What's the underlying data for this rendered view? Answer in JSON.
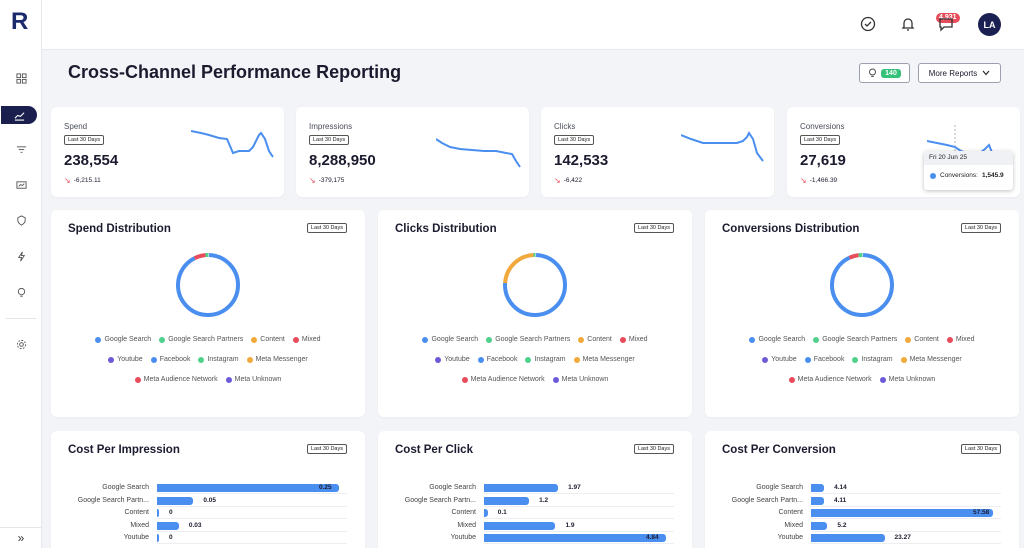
{
  "app": {
    "logo": "R"
  },
  "topbar": {
    "notification_count": "4,931",
    "avatar_initials": "LA"
  },
  "page": {
    "title": "Cross-Channel Performance Reporting",
    "insights_count": "140",
    "more_reports_label": "More Reports"
  },
  "kpis": [
    {
      "label": "Spend",
      "period": "Last 30 Days",
      "value": "238,554",
      "delta": "-6,215.11"
    },
    {
      "label": "Impressions",
      "period": "Last 30 Days",
      "value": "8,288,950",
      "delta": "-379,175"
    },
    {
      "label": "Clicks",
      "period": "Last 30 Days",
      "value": "142,533",
      "delta": "-6,422"
    },
    {
      "label": "Conversions",
      "period": "Last 30 Days",
      "value": "27,619",
      "delta": "-1,466.39"
    }
  ],
  "tooltip": {
    "date": "Fri 20 Jun 25",
    "series": "Conversions:",
    "value": "1,545.9"
  },
  "legend_items": [
    {
      "name": "Google Search",
      "color": "#4a8ff0"
    },
    {
      "name": "Google Search Partners",
      "color": "#4fd08b"
    },
    {
      "name": "Content",
      "color": "#f2a93b"
    },
    {
      "name": "Mixed",
      "color": "#e84b5a"
    },
    {
      "name": "Youtube",
      "color": "#6b5bd6"
    },
    {
      "name": "Facebook",
      "color": "#4a8ff0"
    },
    {
      "name": "Instagram",
      "color": "#4fd08b"
    },
    {
      "name": "Meta Messenger",
      "color": "#f2a93b"
    },
    {
      "name": "Meta Audience Network",
      "color": "#e84b5a"
    },
    {
      "name": "Meta Unknown",
      "color": "#6b5bd6"
    }
  ],
  "distribution_panels": [
    {
      "title": "Spend Distribution",
      "period": "Last 30 Days"
    },
    {
      "title": "Clicks Distribution",
      "period": "Last 30 Days"
    },
    {
      "title": "Conversions Distribution",
      "period": "Last 30 Days"
    }
  ],
  "chart_data": [
    {
      "type": "pie",
      "title": "Spend Distribution",
      "categories": [
        "Google Search",
        "Mixed",
        "Google Search Partners"
      ],
      "values": [
        91,
        6,
        1.5
      ]
    },
    {
      "type": "pie",
      "title": "Clicks Distribution",
      "categories": [
        "Google Search",
        "Content",
        "Google Search Partners"
      ],
      "values": [
        75,
        23,
        1
      ]
    },
    {
      "type": "pie",
      "title": "Conversions Distribution",
      "categories": [
        "Google Search",
        "Mixed",
        "Google Search Partners"
      ],
      "values": [
        92,
        5,
        2
      ]
    },
    {
      "type": "bar",
      "title": "Cost Per Impression",
      "period": "Last 30 Days",
      "categories": [
        "Google Search",
        "Google Search Partn...",
        "Content",
        "Mixed",
        "Youtube"
      ],
      "values": [
        0.25,
        0.05,
        0,
        0.03,
        0
      ],
      "labels": [
        "0.25",
        "0.05",
        "0",
        "0.03",
        "0"
      ]
    },
    {
      "type": "bar",
      "title": "Cost Per Click",
      "period": "Last 30 Days",
      "categories": [
        "Google Search",
        "Google Search Partn...",
        "Content",
        "Mixed",
        "Youtube"
      ],
      "values": [
        1.97,
        1.2,
        0.1,
        1.9,
        4.84
      ],
      "labels": [
        "1.97",
        "1.2",
        "0.1",
        "1.9",
        "4.84"
      ]
    },
    {
      "type": "bar",
      "title": "Cost Per Conversion",
      "period": "Last 30 Days",
      "categories": [
        "Google Search",
        "Google Search Partn...",
        "Content",
        "Mixed",
        "Youtube"
      ],
      "values": [
        4.14,
        4.11,
        57.58,
        5.2,
        23.27
      ],
      "labels": [
        "4.14",
        "4.11",
        "57.58",
        "5.2",
        "23.27"
      ]
    }
  ]
}
